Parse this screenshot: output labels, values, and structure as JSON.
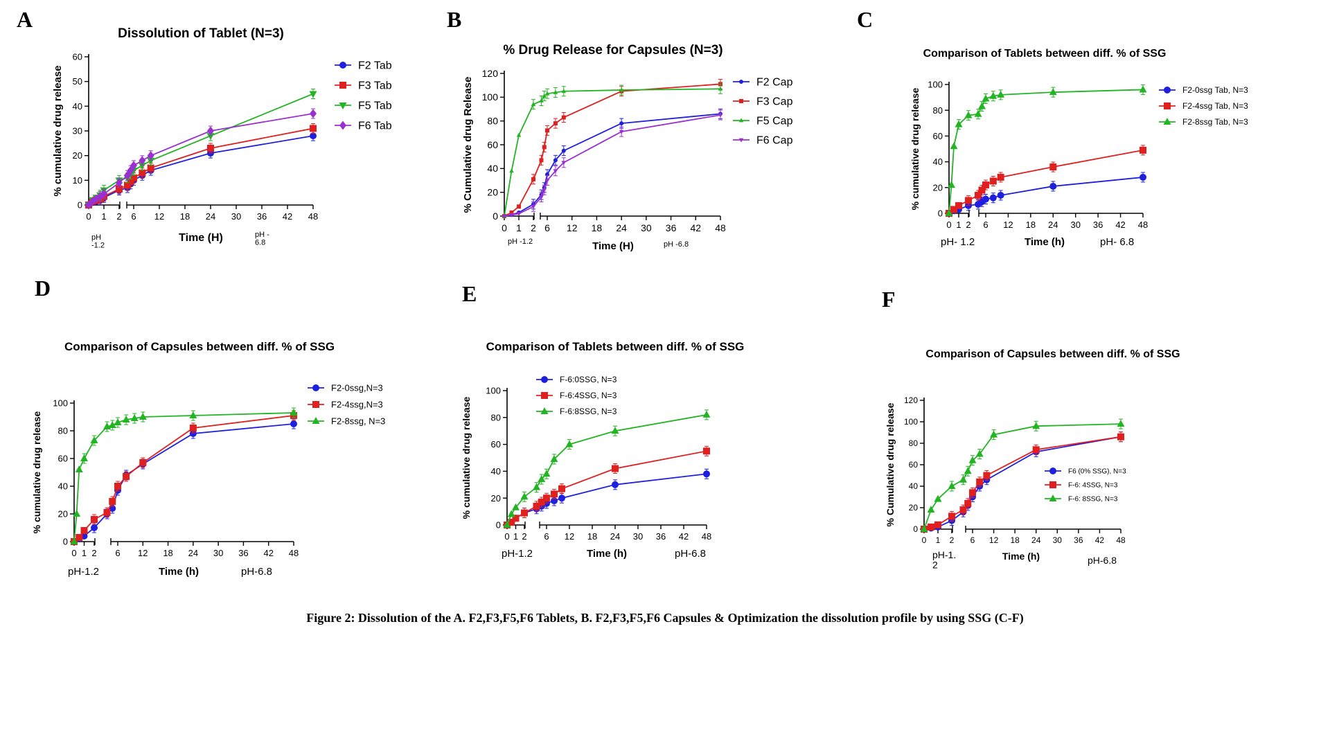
{
  "figure_caption": "Figure 2: Dissolution of the A. F2,F3,F5,F6 Tablets, B. F2,F3,F5,F6 Capsules & Optimization the dissolution profile by using SSG (C-F)",
  "colors": {
    "blue": "#1f1fe0",
    "red": "#e01f1f",
    "green": "#22b422",
    "purple": "#9b30d0"
  },
  "chart_data": [
    {
      "panel": "A",
      "type": "line",
      "title": "Dissolution of Tablet (N=3)",
      "xlabel": "Time (H)",
      "ylabel": "% cumulative drug release",
      "xlim": [
        0,
        48
      ],
      "ylim": [
        0,
        60
      ],
      "y_ticks": [
        0,
        10,
        20,
        30,
        40,
        50,
        60
      ],
      "x_ticks": [
        0,
        1,
        2,
        6,
        12,
        18,
        24,
        30,
        36,
        42,
        48
      ],
      "ph_labels": [
        "pH\n-1.2",
        "pH -\n6.8"
      ],
      "legend": "right",
      "series": [
        {
          "name": "F2 Tab",
          "color": "blue",
          "marker": "circle",
          "x": [
            0,
            0.25,
            0.5,
            0.75,
            1,
            2,
            4,
            5,
            6,
            8,
            10,
            24,
            48
          ],
          "y": [
            0,
            1,
            1.5,
            2,
            3,
            6,
            7,
            8.5,
            10,
            12,
            14,
            21,
            28
          ]
        },
        {
          "name": "F3 Tab",
          "color": "red",
          "marker": "square",
          "x": [
            0,
            0.25,
            0.5,
            0.75,
            1,
            2,
            4,
            5,
            6,
            8,
            10,
            24,
            48
          ],
          "y": [
            0,
            1.5,
            2,
            2.5,
            3.5,
            6.5,
            8,
            9.5,
            11,
            13,
            15,
            23,
            31
          ]
        },
        {
          "name": "F5 Tab",
          "color": "green",
          "marker": "triangle-down",
          "x": [
            0,
            0.25,
            0.5,
            0.75,
            1,
            2,
            4,
            5,
            6,
            8,
            10,
            24,
            48
          ],
          "y": [
            0,
            2,
            3,
            4,
            6,
            10,
            11,
            12.5,
            14,
            16,
            18,
            28,
            45
          ]
        },
        {
          "name": "F6 Tab",
          "color": "purple",
          "marker": "diamond",
          "x": [
            0,
            0.25,
            0.5,
            0.75,
            1,
            2,
            4,
            5,
            6,
            8,
            10,
            24,
            48
          ],
          "y": [
            0,
            1.5,
            2.5,
            3.5,
            4.5,
            9,
            12,
            14,
            16,
            18,
            20,
            30,
            37
          ]
        }
      ]
    },
    {
      "panel": "B",
      "type": "line",
      "title": "% Drug Release for Capsules (N=3)",
      "xlabel": "Time (H)",
      "ylabel": "% Cumulative drug Release",
      "xlim": [
        0,
        48
      ],
      "ylim": [
        0,
        120
      ],
      "y_ticks": [
        0,
        20,
        40,
        60,
        80,
        100,
        120
      ],
      "x_ticks": [
        0,
        1,
        2,
        6,
        12,
        18,
        24,
        30,
        36,
        42,
        48
      ],
      "ph_labels": [
        "pH -1.2",
        "pH -6.8"
      ],
      "legend": "right",
      "series": [
        {
          "name": "F2 Cap",
          "color": "blue",
          "marker": "circle",
          "x": [
            0,
            0.5,
            1,
            2,
            4,
            5,
            6,
            8,
            10,
            24,
            48
          ],
          "y": [
            0,
            1,
            3,
            10,
            18,
            24,
            35,
            47,
            55,
            78,
            86
          ]
        },
        {
          "name": "F3 Cap",
          "color": "red",
          "marker": "square",
          "x": [
            0,
            0.5,
            1,
            2,
            4,
            5,
            6,
            8,
            10,
            24,
            48
          ],
          "y": [
            0,
            3,
            8,
            31,
            47,
            58,
            72,
            78,
            83,
            105,
            111
          ]
        },
        {
          "name": "F5 Cap",
          "color": "green",
          "marker": "triangle",
          "x": [
            0,
            0.5,
            1,
            2,
            4,
            5,
            6,
            8,
            10,
            24,
            48
          ],
          "y": [
            0,
            38,
            68,
            94,
            97,
            101,
            103,
            104,
            105,
            106,
            107
          ]
        },
        {
          "name": "F6 Cap",
          "color": "purple",
          "marker": "triangle-down",
          "x": [
            0,
            0.5,
            1,
            2,
            4,
            5,
            6,
            8,
            10,
            24,
            48
          ],
          "y": [
            0,
            1,
            2,
            8,
            16,
            22,
            30,
            38,
            45,
            71,
            85
          ]
        }
      ]
    },
    {
      "panel": "C",
      "type": "line",
      "title": "Comparison of Tablets between diff. % of SSG",
      "xlabel": "Time (h)",
      "ylabel": "% cumulative drug release",
      "xlim": [
        0,
        48
      ],
      "ylim": [
        0,
        100
      ],
      "y_ticks": [
        0,
        20,
        40,
        60,
        80,
        100
      ],
      "x_ticks": [
        0,
        1,
        2,
        6,
        12,
        18,
        24,
        30,
        36,
        42,
        48
      ],
      "ph_labels": [
        "pH- 1.2",
        "pH- 6.8"
      ],
      "legend": "right",
      "series": [
        {
          "name": "F2-0ssg Tab, N=3",
          "color": "blue",
          "marker": "circle",
          "x": [
            0,
            0.5,
            1,
            2,
            4,
            5,
            6,
            8,
            10,
            24,
            48
          ],
          "y": [
            0,
            2,
            3,
            6,
            7,
            9,
            11,
            12,
            14,
            21,
            28
          ]
        },
        {
          "name": "F2-4ssg Tab, N=3",
          "color": "red",
          "marker": "square",
          "x": [
            0,
            0.5,
            1,
            2,
            4,
            5,
            6,
            8,
            10,
            24,
            48
          ],
          "y": [
            0,
            3,
            6,
            10,
            14,
            18,
            22,
            25,
            28,
            36,
            49
          ]
        },
        {
          "name": "F2-8ssg Tab, N=3",
          "color": "green",
          "marker": "triangle",
          "x": [
            0,
            0.25,
            0.5,
            1,
            2,
            4,
            5,
            6,
            8,
            10,
            24,
            48
          ],
          "y": [
            0,
            22,
            52,
            69,
            76,
            77,
            83,
            89,
            91,
            92,
            94,
            96
          ]
        }
      ]
    },
    {
      "panel": "D",
      "type": "line",
      "title": "Comparison of Capsules between diff. % of SSG",
      "xlabel": "Time (h)",
      "ylabel": "% cumulative drug release",
      "xlim": [
        0,
        48
      ],
      "ylim": [
        0,
        100
      ],
      "y_ticks": [
        0,
        20,
        40,
        60,
        80,
        100
      ],
      "x_ticks": [
        0,
        1,
        2,
        6,
        12,
        18,
        24,
        30,
        36,
        42,
        48
      ],
      "ph_labels": [
        "pH-1.2",
        "pH-6.8"
      ],
      "legend": "top-right",
      "series": [
        {
          "name": "F2-0ssg,N=3",
          "color": "blue",
          "marker": "circle",
          "x": [
            0,
            0.5,
            1,
            2,
            4,
            5,
            6,
            8,
            12,
            24,
            48
          ],
          "y": [
            0,
            2,
            4,
            10,
            20,
            24,
            37,
            48,
            56,
            78,
            85
          ]
        },
        {
          "name": "F2-4ssg,N=3",
          "color": "red",
          "marker": "square",
          "x": [
            0,
            0.5,
            1,
            2,
            4,
            5,
            6,
            8,
            12,
            24,
            48
          ],
          "y": [
            0,
            3,
            8,
            16,
            21,
            29,
            40,
            47,
            57,
            82,
            91
          ]
        },
        {
          "name": "F2-8ssg, N=3",
          "color": "green",
          "marker": "triangle",
          "x": [
            0,
            0.25,
            0.5,
            1,
            2,
            4,
            5,
            6,
            8,
            10,
            12,
            24,
            48
          ],
          "y": [
            0,
            20,
            52,
            60,
            73,
            83,
            84,
            86,
            88,
            89,
            90,
            91,
            93
          ]
        }
      ]
    },
    {
      "panel": "E",
      "type": "line",
      "title": "Comparison of Tablets between diff. % of SSG",
      "xlabel": "Time (h)",
      "ylabel": "% cumulative drug release",
      "xlim": [
        0,
        48
      ],
      "ylim": [
        0,
        100
      ],
      "y_ticks": [
        0,
        20,
        40,
        60,
        80,
        100
      ],
      "x_ticks": [
        0,
        1,
        2,
        6,
        12,
        18,
        24,
        30,
        36,
        42,
        48
      ],
      "ph_labels": [
        "pH-1.2",
        "pH-6.8"
      ],
      "legend": "top-left",
      "series": [
        {
          "name": "F-6:0SSG, N=3",
          "color": "blue",
          "marker": "circle",
          "x": [
            0,
            0.5,
            1,
            2,
            4,
            5,
            6,
            8,
            10,
            24,
            48
          ],
          "y": [
            0,
            2,
            5,
            9,
            12,
            14,
            16,
            18,
            20,
            30,
            38
          ]
        },
        {
          "name": "F-6:4SSG, N=3",
          "color": "red",
          "marker": "square",
          "x": [
            0,
            0.5,
            1,
            2,
            4,
            5,
            6,
            8,
            10,
            24,
            48
          ],
          "y": [
            0,
            2,
            5,
            9,
            14,
            17,
            20,
            23,
            27,
            42,
            55
          ]
        },
        {
          "name": "F-6:8SSG, N=3",
          "color": "green",
          "marker": "triangle",
          "x": [
            0,
            0.5,
            1,
            2,
            4,
            5,
            6,
            8,
            12,
            24,
            48
          ],
          "y": [
            0,
            8,
            13,
            21,
            28,
            34,
            38,
            49,
            60,
            70,
            82
          ]
        }
      ]
    },
    {
      "panel": "F",
      "type": "line",
      "title": "Comparison of Capsules between diff. % of SSG",
      "xlabel": "Time (h)",
      "ylabel": "% Cumulative drug release",
      "xlim": [
        0,
        48
      ],
      "ylim": [
        0,
        120
      ],
      "y_ticks": [
        0,
        20,
        40,
        60,
        80,
        100,
        120
      ],
      "x_ticks": [
        0,
        1,
        2,
        6,
        12,
        18,
        24,
        30,
        36,
        42,
        48
      ],
      "ph_labels": [
        "pH-1.\n2",
        "pH-6.8"
      ],
      "legend": "center-right",
      "series": [
        {
          "name": "F6 (0% SSG), N=3",
          "color": "blue",
          "marker": "circle",
          "x": [
            0,
            0.5,
            1,
            2,
            4,
            5,
            6,
            8,
            10,
            24,
            48
          ],
          "y": [
            0,
            1,
            2,
            8,
            16,
            22,
            30,
            40,
            46,
            72,
            86
          ]
        },
        {
          "name": "F-6: 4SSG, N=3",
          "color": "red",
          "marker": "square",
          "x": [
            0,
            0.5,
            1,
            2,
            4,
            5,
            6,
            8,
            10,
            24,
            48
          ],
          "y": [
            0,
            2,
            4,
            12,
            18,
            24,
            34,
            44,
            50,
            74,
            86
          ]
        },
        {
          "name": "F-6: 8SSG, N=3",
          "color": "green",
          "marker": "triangle",
          "x": [
            0,
            0.5,
            1,
            2,
            4,
            5,
            6,
            8,
            12,
            24,
            48
          ],
          "y": [
            0,
            18,
            28,
            40,
            46,
            54,
            64,
            70,
            88,
            96,
            98
          ]
        }
      ]
    }
  ]
}
